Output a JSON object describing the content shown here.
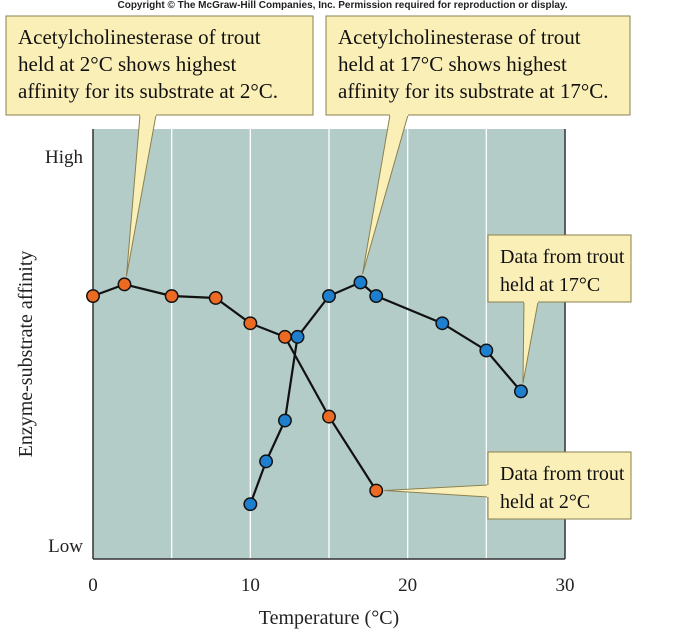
{
  "copyright": "Copyright © The McGraw-Hill Companies, Inc. Permission required for reproduction or display.",
  "colors": {
    "plot_bg": "#b4ccc8",
    "grid": "#ffffff",
    "series_2c": "#ec6a22",
    "series_17c": "#1f7fcf",
    "line": "#111111",
    "callout_fill": "#fbefb8",
    "callout_stroke": "#8a8050"
  },
  "chart_data": {
    "type": "line",
    "xlabel": "Temperature (°C)",
    "ylabel": "Enzyme-substrate affinity",
    "xlim": [
      0,
      30
    ],
    "ylim": [
      0,
      100
    ],
    "xticks": [
      0,
      10,
      20,
      30
    ],
    "yticks": [
      {
        "value": 100,
        "label": "High"
      },
      {
        "value": 0,
        "label": "Low"
      }
    ],
    "grid": true,
    "series": [
      {
        "id": "trout_2c",
        "color": "#ec6a22",
        "x": [
          0,
          2,
          5,
          7.8,
          10,
          12.2,
          15,
          18
        ],
        "y": [
          64,
          67,
          64,
          63.5,
          57,
          53.5,
          33,
          14
        ]
      },
      {
        "id": "trout_17c",
        "color": "#1f7fcf",
        "x": [
          10,
          11,
          12.2,
          13,
          15,
          17,
          18,
          22.2,
          25,
          27.2
        ],
        "y": [
          10.5,
          21.5,
          32,
          53.5,
          64,
          67.5,
          64,
          57,
          50,
          39.5
        ]
      }
    ],
    "annotations": [
      {
        "id": "ann1",
        "lines": [
          "Acetylcholinesterase of trout",
          "held at 2°C shows highest",
          "affinity for its substrate at 2°C."
        ],
        "points_to": {
          "x": 2,
          "y": 67
        }
      },
      {
        "id": "ann2",
        "lines": [
          "Acetylcholinesterase of trout",
          "held at 17°C shows highest",
          "affinity for its substrate at 17°C."
        ],
        "points_to": {
          "x": 17,
          "y": 67.5
        }
      },
      {
        "id": "ann3",
        "lines": [
          "Data from trout",
          "held at 17°C"
        ],
        "points_to": {
          "x": 27.2,
          "y": 39.5
        }
      },
      {
        "id": "ann4",
        "lines": [
          "Data from trout",
          "held at 2°C"
        ],
        "points_to": {
          "x": 18,
          "y": 14
        }
      }
    ]
  }
}
